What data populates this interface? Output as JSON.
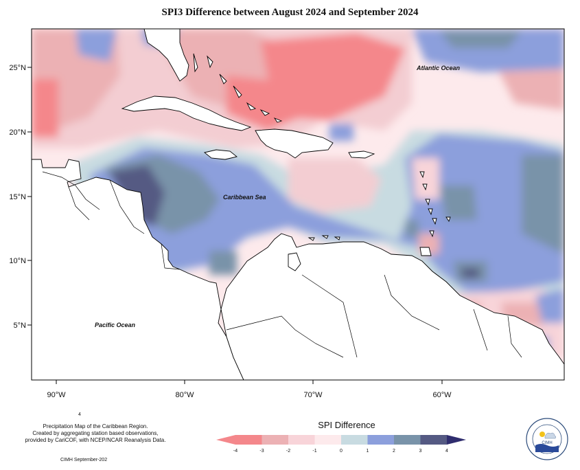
{
  "title": "SPI3 Difference between August 2024 and September 2024",
  "map_labels": {
    "atlantic": "Atlantic Ocean",
    "caribbean": "Caribbean Sea",
    "pacific": "Pacific Ocean"
  },
  "axes": {
    "lat_ticks": [
      "25°N",
      "20°N",
      "15°N",
      "10°N",
      "5°N"
    ],
    "lon_ticks": [
      "90°W",
      "80°W",
      "70°W",
      "60°W"
    ]
  },
  "legend": {
    "title": "SPI Difference",
    "ticks": [
      "-4",
      "-3",
      "-2",
      "-1",
      "0",
      "1",
      "2",
      "3",
      "4"
    ],
    "colors": [
      "#f4878b",
      "#ecb1b4",
      "#f8d4d9",
      "#fdeaec",
      "#c8dbe1",
      "#8c9fdc",
      "#7993a9",
      "#555a83",
      "#2f2d6e"
    ]
  },
  "footer": {
    "stray_digit": "4",
    "line1": "Precipitation Map of the Caribbean Region.",
    "line2": "Created by aggregating station based observations,",
    "line3": "provided by CariCOF, with NCEP/NCAR Reanalysis Data.",
    "credit": "CIMH September-202"
  },
  "logo": {
    "text": "CIMH"
  }
}
